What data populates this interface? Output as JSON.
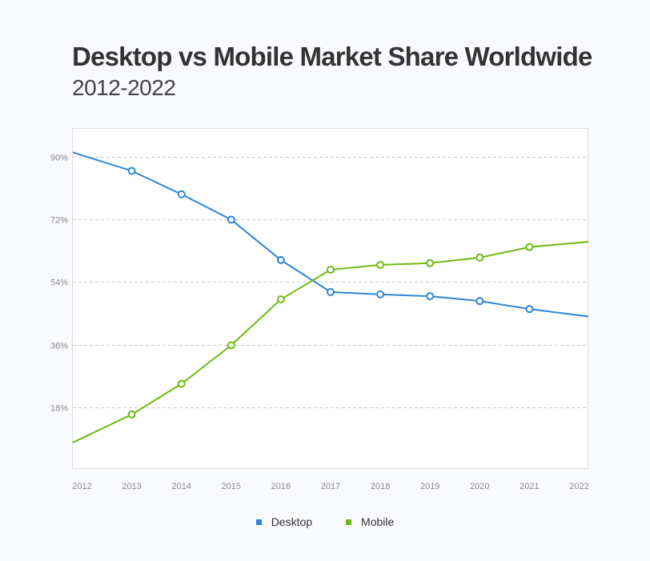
{
  "chart_data": {
    "type": "line",
    "title": "Desktop vs Mobile Market Share Worldwide",
    "subtitle": "2012-2022",
    "x": [
      2012,
      2013,
      2014,
      2015,
      2016,
      2017,
      2018,
      2019,
      2020,
      2021,
      2022
    ],
    "x_tick_labels": [
      "2012",
      "2013",
      "2014",
      "2015",
      "2016",
      "2017",
      "2018",
      "2019",
      "2020",
      "2021",
      "2022"
    ],
    "y_ticks": [
      18,
      36,
      54,
      72,
      90
    ],
    "y_tick_labels": [
      "18%",
      "36%",
      "54%",
      "72%",
      "90%"
    ],
    "ylim": [
      0,
      98
    ],
    "grid": true,
    "legend_position": "bottom",
    "series": [
      {
        "name": "Desktop",
        "color": "#2f86d8",
        "values": [
          90.4,
          85.9,
          79.2,
          71.9,
          60.3,
          51.1,
          50.4,
          49.9,
          48.5,
          46.2,
          44.4
        ]
      },
      {
        "name": "Mobile",
        "color": "#6dbb0f",
        "values": [
          9.1,
          15.9,
          24.7,
          35.8,
          49.0,
          57.5,
          58.9,
          59.4,
          61.0,
          64.0,
          65.3
        ]
      }
    ]
  }
}
